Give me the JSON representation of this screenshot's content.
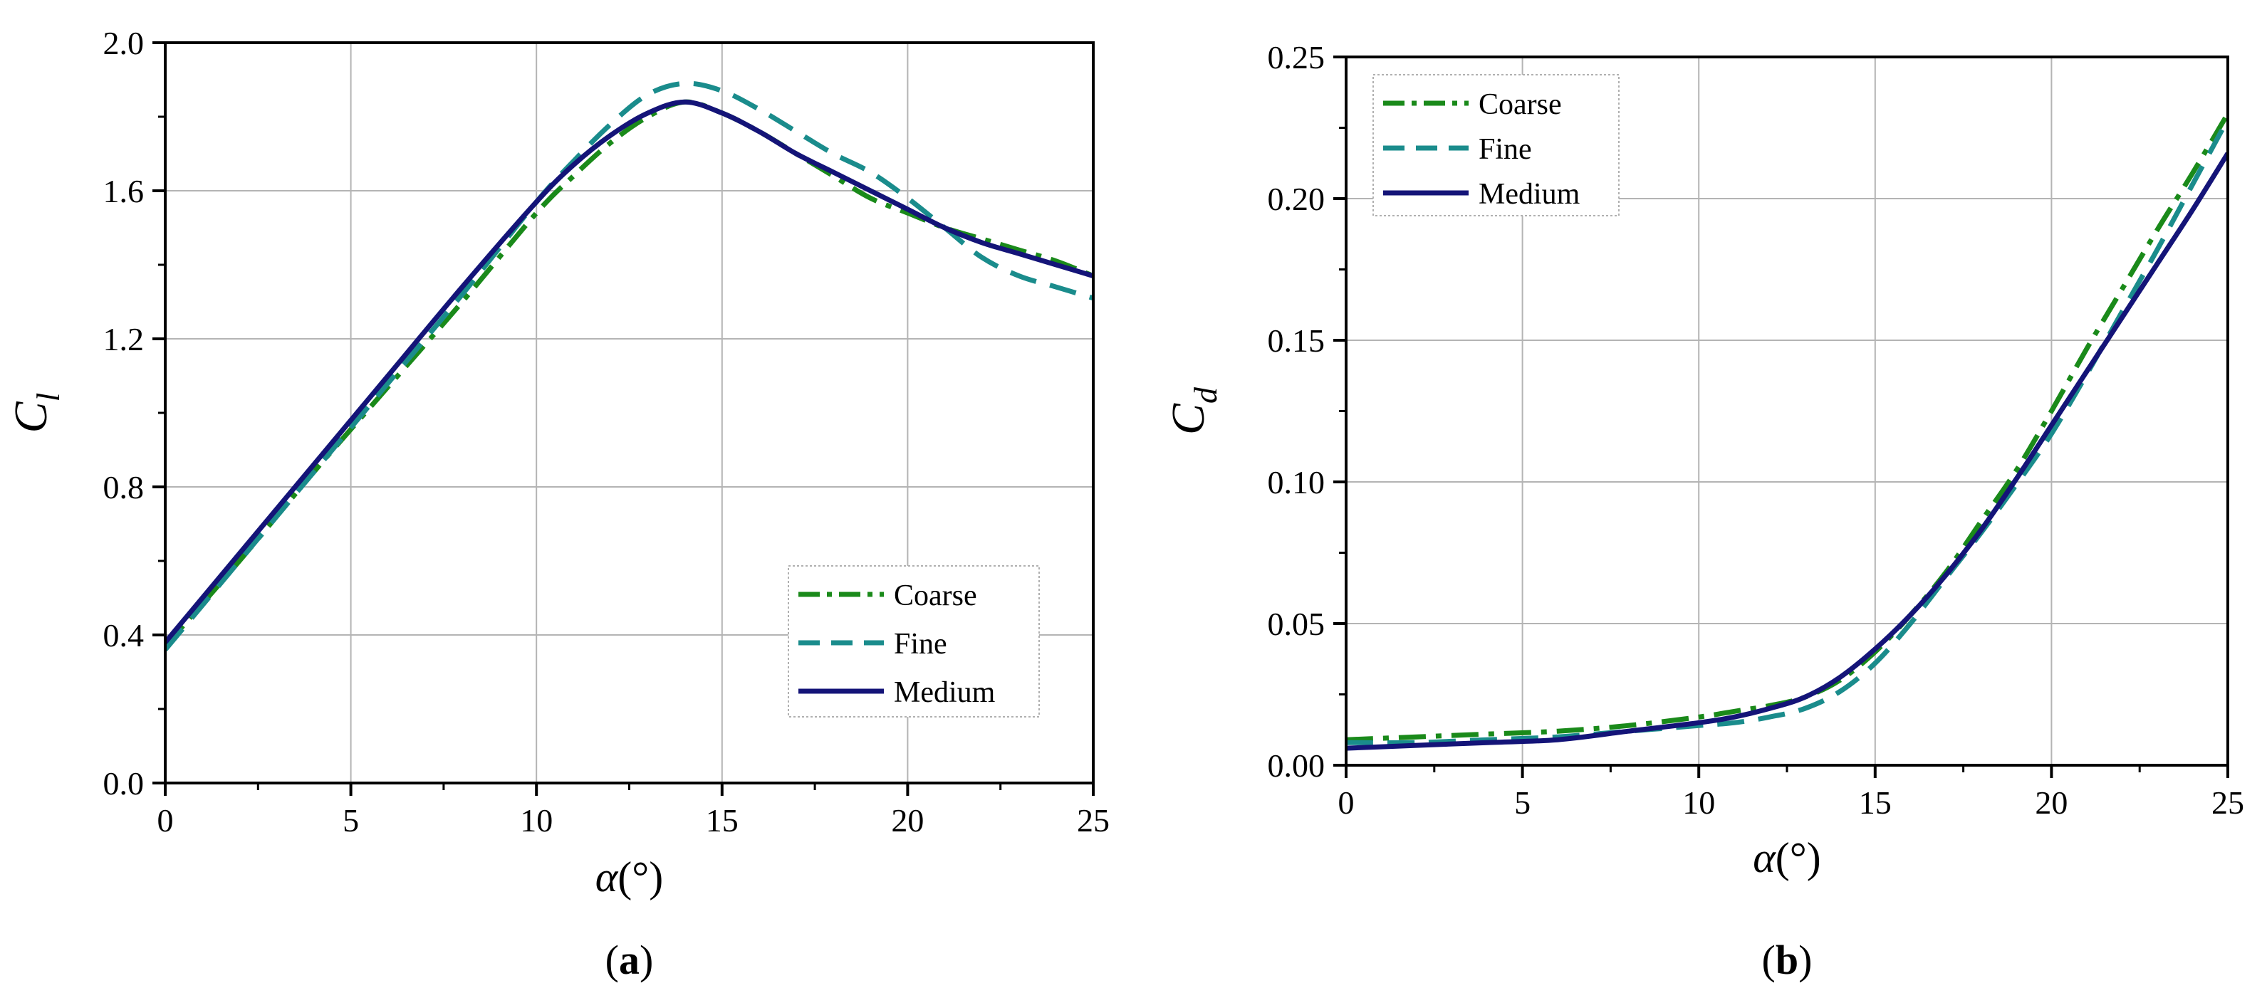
{
  "chart_data": [
    {
      "type": "line",
      "panel_label": "(a)",
      "panel_letter": "a",
      "title": "",
      "xlabel": "α(°)",
      "xlabel_symbol": "α",
      "xlabel_unit": "(°)",
      "ylabel": "Cl",
      "ylabel_main": "C",
      "ylabel_sub": "l",
      "xlim": [
        0,
        25
      ],
      "ylim": [
        0.0,
        2.0
      ],
      "xticks": [
        0,
        5,
        10,
        15,
        20,
        25
      ],
      "xtick_labels": [
        "0",
        "5",
        "10",
        "15",
        "20",
        "25"
      ],
      "yticks": [
        0.0,
        0.4,
        0.8,
        1.2,
        1.6,
        2.0
      ],
      "ytick_labels": [
        "0.0",
        "0.4",
        "0.8",
        "1.2",
        "1.6",
        "2.0"
      ],
      "grid": true,
      "legend_position": "bottom-right",
      "series": [
        {
          "name": "Coarse",
          "style": "dashdot",
          "color": "#1a8a1a",
          "x": [
            0,
            2,
            4,
            6,
            8,
            10,
            11,
            12,
            13,
            14,
            15,
            16,
            17,
            18,
            19,
            20,
            21,
            22,
            23,
            24,
            25
          ],
          "y": [
            0.37,
            0.6,
            0.84,
            1.07,
            1.3,
            1.54,
            1.64,
            1.73,
            1.8,
            1.84,
            1.81,
            1.76,
            1.7,
            1.64,
            1.58,
            1.54,
            1.5,
            1.47,
            1.44,
            1.41,
            1.37
          ]
        },
        {
          "name": "Fine",
          "style": "dashed",
          "color": "#1a8c8c",
          "x": [
            0,
            2,
            4,
            6,
            8,
            10,
            11,
            12,
            13,
            14,
            15,
            16,
            17,
            18,
            19,
            20,
            21,
            22,
            23,
            24,
            25
          ],
          "y": [
            0.36,
            0.6,
            0.84,
            1.08,
            1.32,
            1.57,
            1.68,
            1.78,
            1.86,
            1.89,
            1.87,
            1.82,
            1.76,
            1.7,
            1.65,
            1.58,
            1.5,
            1.42,
            1.37,
            1.34,
            1.31
          ]
        },
        {
          "name": "Medium",
          "style": "solid",
          "color": "#141478",
          "x": [
            0,
            2,
            4,
            6,
            8,
            10,
            11,
            12,
            13,
            14,
            15,
            16,
            17,
            18,
            19,
            20,
            21,
            22,
            23,
            24,
            25
          ],
          "y": [
            0.38,
            0.62,
            0.86,
            1.1,
            1.34,
            1.57,
            1.67,
            1.75,
            1.81,
            1.84,
            1.81,
            1.76,
            1.7,
            1.65,
            1.6,
            1.55,
            1.5,
            1.46,
            1.43,
            1.4,
            1.37
          ]
        }
      ]
    },
    {
      "type": "line",
      "panel_label": "(b)",
      "panel_letter": "b",
      "title": "",
      "xlabel": "α(°)",
      "xlabel_symbol": "α",
      "xlabel_unit": "(°)",
      "ylabel": "Cd",
      "ylabel_main": "C",
      "ylabel_sub": "d",
      "xlim": [
        0,
        25
      ],
      "ylim": [
        0.0,
        0.25
      ],
      "xticks": [
        0,
        5,
        10,
        15,
        20,
        25
      ],
      "xtick_labels": [
        "0",
        "5",
        "10",
        "15",
        "20",
        "25"
      ],
      "yticks": [
        0.0,
        0.05,
        0.1,
        0.15,
        0.2,
        0.25
      ],
      "ytick_labels": [
        "0.00",
        "0.05",
        "0.10",
        "0.15",
        "0.20",
        "0.25"
      ],
      "grid": true,
      "legend_position": "top-left",
      "series": [
        {
          "name": "Coarse",
          "style": "dashdot",
          "color": "#1a8a1a",
          "x": [
            0,
            2,
            4,
            6,
            8,
            10,
            11,
            12,
            13,
            14,
            15,
            16,
            17,
            18,
            19,
            20,
            21,
            22,
            23,
            24,
            25
          ],
          "y": [
            0.009,
            0.01,
            0.011,
            0.012,
            0.014,
            0.017,
            0.019,
            0.021,
            0.024,
            0.03,
            0.04,
            0.053,
            0.068,
            0.086,
            0.104,
            0.125,
            0.147,
            0.168,
            0.189,
            0.209,
            0.23
          ]
        },
        {
          "name": "Fine",
          "style": "dashed",
          "color": "#1a8c8c",
          "x": [
            0,
            2,
            4,
            6,
            8,
            10,
            11,
            12,
            13,
            14,
            15,
            16,
            17,
            18,
            19,
            20,
            21,
            22,
            23,
            24,
            25
          ],
          "y": [
            0.008,
            0.008,
            0.009,
            0.01,
            0.012,
            0.014,
            0.015,
            0.017,
            0.02,
            0.026,
            0.036,
            0.05,
            0.066,
            0.082,
            0.099,
            0.117,
            0.138,
            0.16,
            0.182,
            0.205,
            0.228
          ]
        },
        {
          "name": "Medium",
          "style": "solid",
          "color": "#141478",
          "x": [
            0,
            2,
            4,
            6,
            8,
            10,
            11,
            12,
            13,
            14,
            15,
            16,
            17,
            18,
            19,
            20,
            21,
            22,
            23,
            24,
            25
          ],
          "y": [
            0.006,
            0.007,
            0.008,
            0.009,
            0.012,
            0.015,
            0.017,
            0.02,
            0.024,
            0.031,
            0.041,
            0.053,
            0.067,
            0.083,
            0.101,
            0.12,
            0.139,
            0.158,
            0.177,
            0.196,
            0.216
          ]
        }
      ]
    }
  ]
}
